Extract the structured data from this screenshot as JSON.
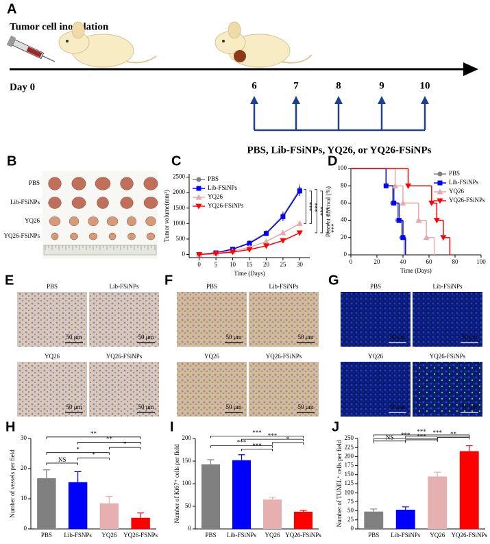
{
  "schematic": {
    "label": "A",
    "title": "Tumor cell inoculation",
    "start": "Day 0",
    "days": [
      "6",
      "7",
      "8",
      "9",
      "10"
    ],
    "treatment": "PBS, Lib-FSiNPs, YQ26, or YQ26-FSiNPs"
  },
  "tumor_photo": {
    "label": "B",
    "rows": [
      "PBS",
      "Lib-FSiNPs",
      "YQ26",
      "YQ26-FSiNPs"
    ]
  },
  "micrographs": [
    {
      "label": "E",
      "panels": [
        "PBS",
        "Lib-FSiNPs",
        "YQ26",
        "YQ26-FSiNPs"
      ],
      "scale_bar": "50 μm"
    },
    {
      "label": "F",
      "panels": [
        "PBS",
        "Lib-FSiNPs",
        "YQ26",
        "YQ26-FSiNPs"
      ],
      "scale_bar": "50 μm"
    },
    {
      "label": "G",
      "panels": [
        "PBS",
        "Lib-FSiNPs",
        "YQ26",
        "YQ26-FSiNPs"
      ],
      "scale_bar": "50 μm"
    }
  ],
  "chart_data": [
    {
      "panel": "C",
      "type": "line",
      "x_label": "Time (Days)",
      "y_label": "Tumor volume(mm³)",
      "x": [
        0,
        5,
        10,
        15,
        20,
        25,
        30
      ],
      "series": [
        {
          "name": "PBS",
          "color": "#808080",
          "marker": "circle",
          "values": [
            0,
            60,
            180,
            380,
            700,
            1250,
            2100
          ],
          "errors": [
            0,
            15,
            30,
            50,
            80,
            150,
            180
          ]
        },
        {
          "name": "Lib-FSiNPs",
          "color": "#0000ff",
          "marker": "square",
          "values": [
            0,
            55,
            170,
            360,
            680,
            1220,
            2050
          ],
          "errors": [
            0,
            15,
            30,
            50,
            80,
            140,
            160
          ]
        },
        {
          "name": "YQ26",
          "color": "#e8a8a8",
          "marker": "triangle-up",
          "values": [
            0,
            40,
            110,
            230,
            420,
            700,
            1000
          ],
          "errors": [
            0,
            10,
            20,
            30,
            50,
            70,
            90
          ]
        },
        {
          "name": "YQ26-FSiNPs",
          "color": "#ff0000",
          "marker": "triangle-down",
          "values": [
            0,
            30,
            80,
            160,
            280,
            450,
            700
          ],
          "errors": [
            0,
            8,
            15,
            25,
            35,
            50,
            60
          ]
        }
      ],
      "xlim": [
        -3,
        33
      ],
      "ylim": [
        -100,
        2600
      ],
      "xticks": [
        0,
        5,
        10,
        15,
        20,
        25,
        30
      ],
      "yticks": [
        0,
        500,
        1000,
        1500,
        2000,
        2500
      ],
      "legend": "upper left",
      "significance": [
        {
          "between": [
            0,
            2
          ],
          "label": "***"
        },
        {
          "between": [
            1,
            2
          ],
          "label": "***"
        },
        {
          "between": [
            0,
            3
          ],
          "label": "***"
        },
        {
          "between": [
            1,
            3
          ],
          "label": "***"
        },
        {
          "between": [
            2,
            3
          ],
          "label": "***"
        }
      ]
    },
    {
      "panel": "D",
      "type": "step",
      "x_label": "Time (Days)",
      "y_label": "Percent survival (%)",
      "series": [
        {
          "name": "PBS",
          "color": "#808080",
          "marker": "circle",
          "x": [
            0,
            27,
            32,
            36,
            39,
            41
          ],
          "values": [
            100,
            80,
            60,
            40,
            20,
            0
          ]
        },
        {
          "name": "Lib-FSiNPs",
          "color": "#0000ff",
          "marker": "square",
          "x": [
            0,
            27,
            33,
            37,
            40,
            42
          ],
          "values": [
            100,
            80,
            60,
            40,
            20,
            0
          ]
        },
        {
          "name": "YQ26",
          "color": "#e8a8a8",
          "marker": "triangle-up",
          "x": [
            0,
            34,
            40,
            52,
            58,
            64
          ],
          "values": [
            100,
            80,
            60,
            40,
            20,
            0
          ]
        },
        {
          "name": "YQ26-FSiNPs",
          "color": "#ff0000",
          "marker": "triangle-down",
          "x": [
            0,
            44,
            62,
            66,
            71,
            76
          ],
          "values": [
            100,
            80,
            60,
            40,
            20,
            0
          ]
        }
      ],
      "xlim": [
        0,
        100
      ],
      "ylim": [
        0,
        100
      ],
      "xticks": [
        0,
        20,
        40,
        60,
        80,
        100
      ],
      "yticks": [
        0,
        20,
        40,
        60,
        80,
        100
      ],
      "legend": "upper right"
    },
    {
      "panel": "H",
      "type": "bar",
      "y_label": "Number of vessels per field",
      "categories": [
        "PBS",
        "Lib-FSNPs",
        "YQ26",
        "YQ26-FSNPs"
      ],
      "values": [
        16.8,
        15.5,
        8.5,
        3.7
      ],
      "errors": [
        2.8,
        3.5,
        2.3,
        1.6
      ],
      "colors": [
        "#808080",
        "#0000ff",
        "#e6b0b0",
        "#ff0000"
      ],
      "ylim": [
        0,
        30
      ],
      "yticks": [
        0,
        10,
        20,
        30
      ],
      "significance": [
        {
          "between": [
            0,
            1
          ],
          "label": "NS"
        },
        {
          "between": [
            1,
            2
          ],
          "label": "*"
        },
        {
          "between": [
            0,
            2
          ],
          "label": "*"
        },
        {
          "between": [
            2,
            3
          ],
          "label": "*"
        },
        {
          "between": [
            1,
            3
          ],
          "label": "**"
        },
        {
          "between": [
            0,
            3
          ],
          "label": "**"
        }
      ]
    },
    {
      "panel": "I",
      "type": "bar",
      "y_label": "Number of Ki67⁺ cells per field",
      "categories": [
        "PBS",
        "Lib-FSiNPs",
        "YQ26",
        "YQ26-FSiNPs"
      ],
      "values": [
        143,
        152,
        65,
        38
      ],
      "errors": [
        10,
        12,
        5,
        3
      ],
      "colors": [
        "#808080",
        "#0000ff",
        "#e6b0b0",
        "#ff0000"
      ],
      "ylim": [
        0,
        200
      ],
      "yticks": [
        0,
        50,
        100,
        150,
        200
      ],
      "significance": [
        {
          "between": [
            1,
            2
          ],
          "label": "***"
        },
        {
          "between": [
            0,
            2
          ],
          "label": "***"
        },
        {
          "between": [
            2,
            3
          ],
          "label": "*"
        },
        {
          "between": [
            1,
            3
          ],
          "label": "***"
        },
        {
          "between": [
            0,
            3
          ],
          "label": "***"
        }
      ]
    },
    {
      "panel": "J",
      "type": "bar",
      "y_label": "Number of TUNEL⁺ cells per field",
      "categories": [
        "PBS",
        "Lib-FSiNPs",
        "YQ26",
        "YQ26-FSiNPs"
      ],
      "values": [
        48,
        53,
        145,
        215
      ],
      "errors": [
        7,
        8,
        12,
        15
      ],
      "colors": [
        "#808080",
        "#0000ff",
        "#e6b0b0",
        "#ff0000"
      ],
      "ylim": [
        0,
        250
      ],
      "yticks": [
        0,
        25,
        50,
        75,
        100,
        125,
        150,
        175,
        200,
        225,
        250
      ],
      "significance": [
        {
          "between": [
            0,
            1
          ],
          "label": "NS"
        },
        {
          "between": [
            1,
            2
          ],
          "label": "***"
        },
        {
          "between": [
            0,
            2
          ],
          "label": "***"
        },
        {
          "between": [
            2,
            3
          ],
          "label": "**"
        },
        {
          "between": [
            1,
            3
          ],
          "label": "***"
        },
        {
          "between": [
            0,
            3
          ],
          "label": "***"
        }
      ]
    }
  ]
}
